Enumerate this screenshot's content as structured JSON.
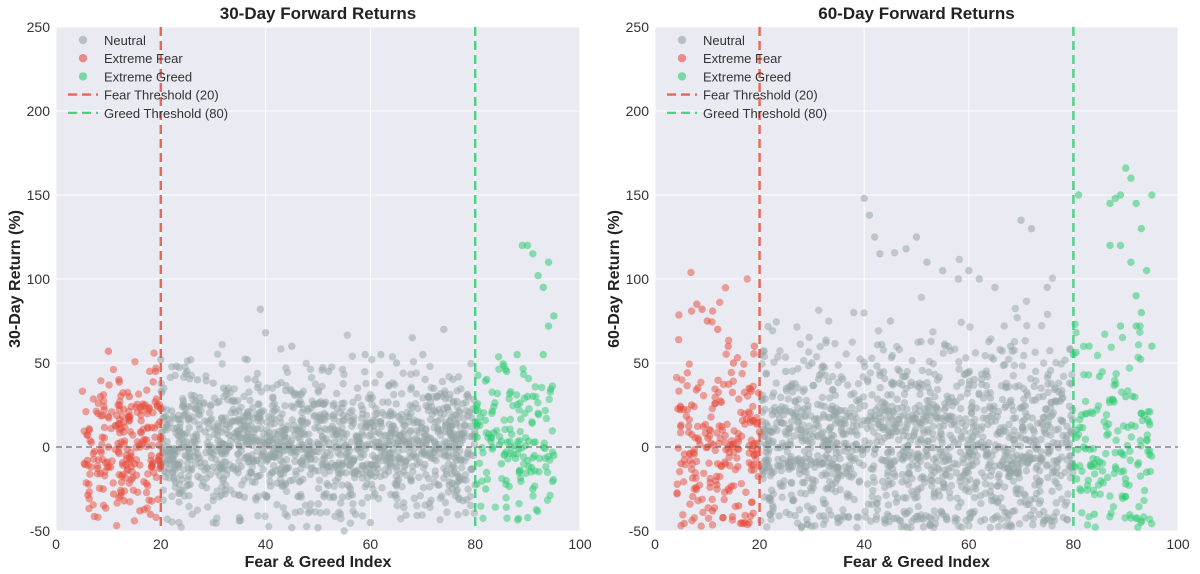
{
  "colors": {
    "neutral": "#95a5a6",
    "fear": "#e74c3c",
    "greed": "#2ecc71",
    "plot_bg": "#eaeaf2",
    "grid": "#ffffff",
    "zero_line": "#555555"
  },
  "chart_data": [
    {
      "type": "scatter",
      "title": "30-Day Forward Returns",
      "xlabel": "Fear & Greed Index",
      "ylabel": "30-Day Return (%)",
      "xlim": [
        0,
        100
      ],
      "ylim": [
        -50,
        250
      ],
      "xticks": [
        "0",
        "20",
        "40",
        "60",
        "80",
        "100"
      ],
      "yticks": [
        "-50",
        "0",
        "50",
        "100",
        "150",
        "200",
        "250"
      ],
      "xtick_values": [
        0,
        20,
        40,
        60,
        80,
        100
      ],
      "ytick_values": [
        -50,
        0,
        50,
        100,
        150,
        200,
        250
      ],
      "thresholds": [
        20,
        80
      ],
      "zero_line": 0,
      "legend": [
        "Neutral",
        "Extreme Fear",
        "Extreme Greed",
        "Fear Threshold (20)",
        "Greed Threshold (80)"
      ],
      "legend_position": "top-left",
      "series": [
        {
          "name": "Neutral",
          "x_range": [
            20,
            80
          ],
          "points": [
            [
              20,
              52
            ],
            [
              23,
              48
            ],
            [
              25,
              45
            ],
            [
              27,
              40
            ],
            [
              30,
              38
            ],
            [
              32,
              35
            ],
            [
              26,
              -40
            ],
            [
              30,
              -45
            ],
            [
              35,
              -42
            ],
            [
              39,
              82
            ],
            [
              40,
              68
            ],
            [
              45,
              60
            ],
            [
              50,
              -48
            ],
            [
              55,
              -50
            ],
            [
              59,
              55
            ],
            [
              62,
              55
            ],
            [
              65,
              50
            ],
            [
              68,
              65
            ],
            [
              70,
              55
            ],
            [
              74,
              70
            ],
            [
              77,
              -20
            ],
            [
              60,
              -45
            ],
            [
              45,
              -48
            ],
            [
              35,
              -44
            ],
            [
              52,
              45
            ],
            [
              38,
              40
            ]
          ]
        },
        {
          "name": "Extreme Fear",
          "x_range": [
            5,
            20
          ],
          "points": [
            [
              10,
              57
            ],
            [
              12,
              40
            ],
            [
              14,
              30
            ],
            [
              8,
              20
            ],
            [
              10,
              0
            ],
            [
              15,
              -10
            ],
            [
              12,
              -30
            ],
            [
              13,
              -32
            ],
            [
              16,
              -38
            ],
            [
              18,
              -40
            ],
            [
              19,
              45
            ],
            [
              17,
              25
            ],
            [
              6,
              -8
            ],
            [
              9,
              -25
            ],
            [
              11,
              -28
            ]
          ]
        },
        {
          "name": "Extreme Greed",
          "x_range": [
            80,
            95
          ],
          "points": [
            [
              89,
              120
            ],
            [
              90,
              120
            ],
            [
              91,
              115
            ],
            [
              94,
              110
            ],
            [
              92,
              102
            ],
            [
              93,
              95
            ],
            [
              95,
              78
            ],
            [
              94,
              72
            ],
            [
              93,
              55
            ],
            [
              88,
              55
            ],
            [
              86,
              45
            ],
            [
              90,
              30
            ],
            [
              92,
              20
            ],
            [
              85,
              -10
            ],
            [
              82,
              -25
            ],
            [
              91,
              -25
            ],
            [
              95,
              -5
            ],
            [
              80,
              15
            ]
          ]
        }
      ]
    },
    {
      "type": "scatter",
      "title": "60-Day Forward Returns",
      "xlabel": "Fear & Greed Index",
      "ylabel": "60-Day Return (%)",
      "xlim": [
        0,
        100
      ],
      "ylim": [
        -50,
        250
      ],
      "xticks": [
        "0",
        "20",
        "40",
        "60",
        "80",
        "100"
      ],
      "yticks": [
        "-50",
        "0",
        "50",
        "100",
        "150",
        "200",
        "250"
      ],
      "xtick_values": [
        0,
        20,
        40,
        60,
        80,
        100
      ],
      "ytick_values": [
        -50,
        0,
        50,
        100,
        150,
        200,
        250
      ],
      "thresholds": [
        20,
        80
      ],
      "zero_line": 0,
      "legend": [
        "Neutral",
        "Extreme Fear",
        "Extreme Greed",
        "Fear Threshold (20)",
        "Greed Threshold (80)"
      ],
      "legend_position": "top-left",
      "series": [
        {
          "name": "Neutral",
          "x_range": [
            20,
            80
          ],
          "points": [
            [
              40,
              148
            ],
            [
              41,
              138
            ],
            [
              42,
              125
            ],
            [
              43,
              115
            ],
            [
              50,
              125
            ],
            [
              48,
              118
            ],
            [
              52,
              110
            ],
            [
              55,
              105
            ],
            [
              58,
              100
            ],
            [
              60,
              105
            ],
            [
              62,
              100
            ],
            [
              65,
              95
            ],
            [
              70,
              135
            ],
            [
              72,
              130
            ],
            [
              75,
              95
            ],
            [
              38,
              80
            ],
            [
              45,
              75
            ],
            [
              68,
              60
            ],
            [
              30,
              50
            ],
            [
              25,
              45
            ],
            [
              22,
              -40
            ],
            [
              28,
              -48
            ],
            [
              35,
              -45
            ],
            [
              55,
              -40
            ],
            [
              65,
              -42
            ],
            [
              75,
              -42
            ]
          ]
        },
        {
          "name": "Extreme Fear",
          "x_range": [
            4,
            20
          ],
          "points": [
            [
              8,
              85
            ],
            [
              9,
              82
            ],
            [
              10,
              75
            ],
            [
              12,
              70
            ],
            [
              14,
              60
            ],
            [
              15,
              50
            ],
            [
              19,
              60
            ],
            [
              7,
              25
            ],
            [
              10,
              0
            ],
            [
              12,
              -10
            ],
            [
              14,
              -25
            ],
            [
              16,
              -35
            ],
            [
              18,
              -45
            ],
            [
              13,
              -42
            ],
            [
              11,
              -38
            ],
            [
              5,
              -10
            ]
          ]
        },
        {
          "name": "Extreme Greed",
          "x_range": [
            80,
            95
          ],
          "points": [
            [
              90,
              166
            ],
            [
              91,
              160
            ],
            [
              89,
              150
            ],
            [
              88,
              148
            ],
            [
              87,
              145
            ],
            [
              92,
              145
            ],
            [
              95,
              150
            ],
            [
              81,
              150
            ],
            [
              93,
              130
            ],
            [
              89,
              120
            ],
            [
              87,
              120
            ],
            [
              91,
              110
            ],
            [
              94,
              105
            ],
            [
              92,
              90
            ],
            [
              93,
              80
            ],
            [
              89,
              72
            ],
            [
              92,
              72
            ],
            [
              95,
              60
            ],
            [
              80,
              55
            ],
            [
              83,
              60
            ],
            [
              85,
              42
            ],
            [
              90,
              30
            ],
            [
              93,
              20
            ],
            [
              82,
              0
            ],
            [
              84,
              -10
            ],
            [
              90,
              -22
            ],
            [
              94,
              -15
            ],
            [
              84,
              -40
            ]
          ]
        }
      ]
    }
  ]
}
